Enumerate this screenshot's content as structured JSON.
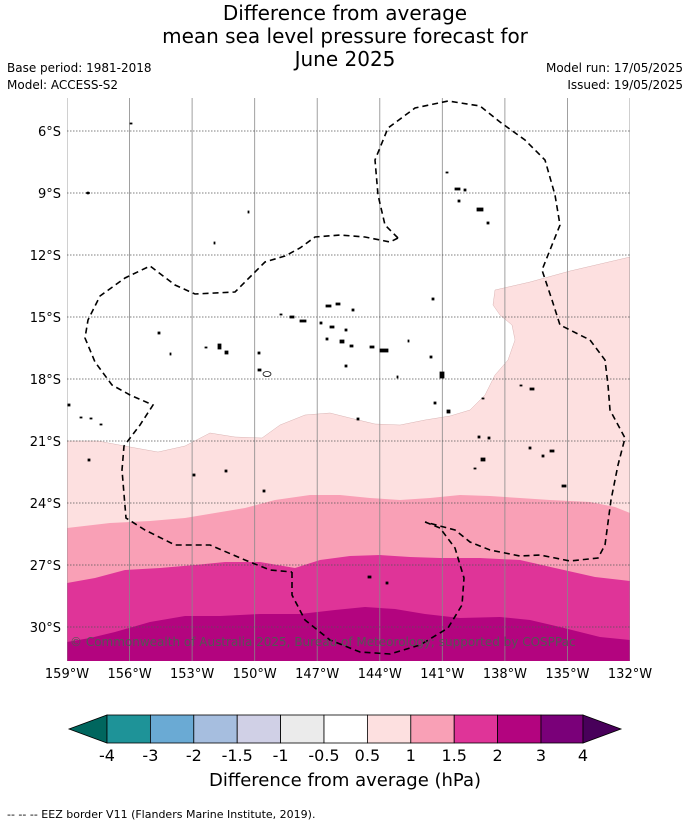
{
  "title": {
    "line1": "Difference from average",
    "line2": "mean sea level pressure forecast for",
    "line3": "June 2025"
  },
  "meta": {
    "base_period": "Base period: 1981-2018",
    "model": "Model: ACCESS-S2",
    "model_run": "Model run: 17/05/2025",
    "issued": "Issued: 19/05/2025"
  },
  "map": {
    "copyright": "© Commonwealth of Australia 2025, Bureau of Meteorology; supported by COSPPac",
    "lon_ticks": [
      "159°W",
      "156°W",
      "153°W",
      "150°W",
      "147°W",
      "144°W",
      "141°W",
      "138°W",
      "135°W",
      "132°W"
    ],
    "lat_ticks": [
      "6°S",
      "9°S",
      "12°S",
      "15°S",
      "18°S",
      "21°S",
      "24°S",
      "27°S",
      "30°S"
    ],
    "land_color": "#000000",
    "eez_border_style": "dashed black"
  },
  "colorbar": {
    "title": "Difference from average (hPa)",
    "tick_labels": [
      "-4",
      "-3",
      "-2",
      "-1.5",
      "-1",
      "-0.5",
      "0.5",
      "1",
      "1.5",
      "2",
      "3",
      "4"
    ],
    "colors": {
      "below_-4": "#00665e",
      "-4_-3": "#1e9398",
      "-3_-2": "#6aaad4",
      "-2_-1.5": "#a6bedf",
      "-1.5_-1": "#d0d0e6",
      "-1_-0.5": "#ebebeb",
      "-0.5_0.5": "#ffffff",
      "0.5_1": "#fde0e0",
      "1_1.5": "#f9a0b6",
      "1.5_2": "#df3498",
      "2_3": "#b3047f",
      "3_4": "#7a0079",
      "above_4": "#48005a"
    }
  },
  "footer": "--  --  -- EEZ border V11 (Flanders Marine Institute, 2019)."
}
